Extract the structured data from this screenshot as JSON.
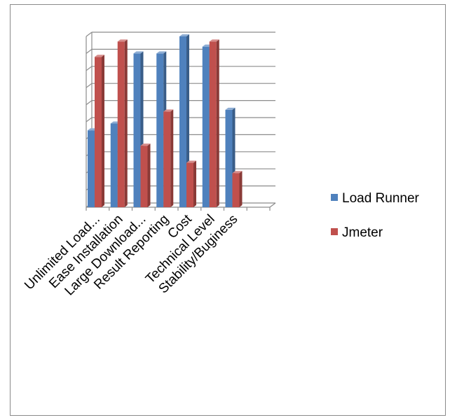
{
  "chart_data": {
    "type": "bar",
    "title": "",
    "xlabel": "",
    "ylabel": "",
    "categories": [
      "Unlimited Load...",
      "Ease Installation",
      "Large Download...",
      "Result Reporting",
      "Cost",
      "Technical Level",
      "Stability/Buginess"
    ],
    "series": [
      {
        "name": "Load Runner",
        "color": "#4F81BD",
        "values": [
          4.5,
          4.9,
          9,
          9,
          10,
          9.4,
          5.7
        ]
      },
      {
        "name": "Jmeter",
        "color": "#C0504D",
        "values": [
          8.8,
          9.7,
          3.6,
          5.6,
          2.6,
          9.7,
          2
        ]
      }
    ],
    "ylim": [
      0,
      10
    ],
    "extra_empty_category_slots": 1,
    "grid": true,
    "tick_labels_shown": false,
    "legend_position": "right",
    "render_3d": true
  }
}
